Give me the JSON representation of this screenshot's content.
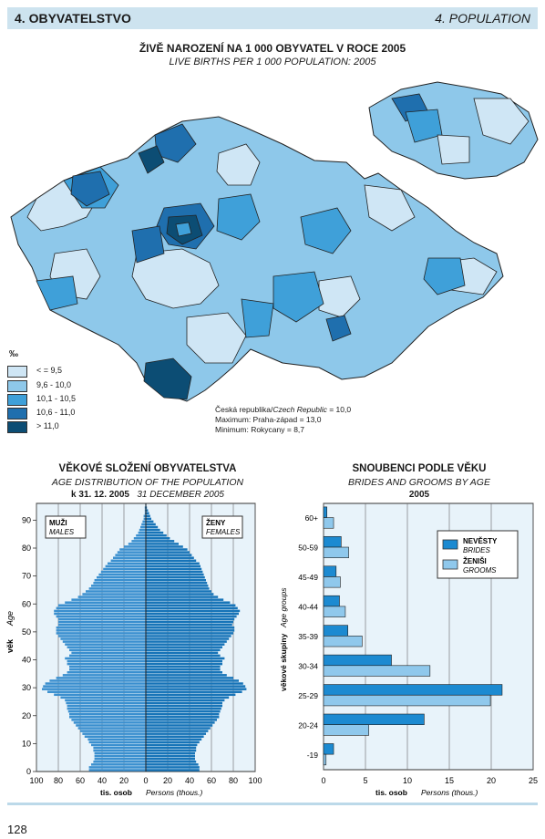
{
  "header": {
    "left": "4. OBYVATELSTVO",
    "right": "4. POPULATION"
  },
  "map": {
    "title": "ŽIVĚ NAROZENÍ NA 1 000 OBYVATEL V ROCE 2005",
    "subtitle": "LIVE BIRTHS PER  1 000 POPULATION: 2005",
    "unit": "‰",
    "legend": [
      {
        "label": "< = 9,5",
        "color": "#cfe6f5"
      },
      {
        "label": "9,6 - 10,0",
        "color": "#8ec8ea"
      },
      {
        "label": "10,1 - 10,5",
        "color": "#3fa0d9"
      },
      {
        "label": "10,6 - 11,0",
        "color": "#1f6fae"
      },
      {
        "label": "> 11,0",
        "color": "#0c4d74"
      }
    ],
    "notes": [
      "Česká republika/",
      "Czech Republic",
      " = 10,0",
      "Maximum: Praha-západ = 13,0",
      "Minimum: Rokycany = 8,7"
    ]
  },
  "pyramid": {
    "title": "VĚKOVÉ SLOŽENÍ OBYVATELSTVA",
    "subtitle": "AGE DISTRIBUTION OF THE POPULATION",
    "date_cz": "k 31. 12. 2005",
    "date_en": "31 DECEMBER 2005",
    "males_cz": "MUŽI",
    "males_en": "MALES",
    "females_cz": "ŽENY",
    "females_en": "FEMALES",
    "ylabel_cz": "věk",
    "ylabel_en": "Age",
    "xlabel_cz": "tis. osob",
    "xlabel_en": "Persons (thous.)"
  },
  "brides": {
    "title": "SNOUBENCI PODLE VĚKU",
    "subtitle": "BRIDES AND GROOMS BY AGE",
    "year": "2005",
    "ylabel_cz": "věkové skupiny",
    "ylabel_en": "Age groups",
    "xlabel_cz": "tis. osob",
    "xlabel_en": "Persons (thous.)",
    "legend": [
      {
        "cz": "NEVĚSTY",
        "en": "BRIDES",
        "color": "#1c8ad1"
      },
      {
        "cz": "ŽENIŠI",
        "en": "GROOMS",
        "color": "#8fc8ec"
      }
    ]
  },
  "chart_data": [
    {
      "type": "bar",
      "orientation": "horizontal",
      "title": "VĚKOVÉ SLOŽENÍ OBYVATELSTVA",
      "x": [
        0,
        1,
        2,
        3,
        4,
        5,
        6,
        7,
        8,
        9,
        10,
        11,
        12,
        13,
        14,
        15,
        16,
        17,
        18,
        19,
        20,
        21,
        22,
        23,
        24,
        25,
        26,
        27,
        28,
        29,
        30,
        31,
        32,
        33,
        34,
        35,
        36,
        37,
        38,
        39,
        40,
        41,
        42,
        43,
        44,
        45,
        46,
        47,
        48,
        49,
        50,
        51,
        52,
        53,
        54,
        55,
        56,
        57,
        58,
        59,
        60,
        61,
        62,
        63,
        64,
        65,
        66,
        67,
        68,
        69,
        70,
        71,
        72,
        73,
        74,
        75,
        76,
        77,
        78,
        79,
        80,
        81,
        82,
        83,
        84,
        85,
        86,
        87,
        88,
        89,
        90,
        91,
        92,
        93,
        94,
        95
      ],
      "series": [
        {
          "name": "MUŽI",
          "values": [
            52,
            52,
            50,
            48,
            47,
            47,
            47,
            48,
            48,
            50,
            52,
            53,
            56,
            58,
            60,
            62,
            64,
            66,
            68,
            70,
            70,
            71,
            72,
            72,
            73,
            74,
            78,
            84,
            90,
            95,
            94,
            92,
            88,
            82,
            76,
            72,
            70,
            70,
            72,
            72,
            74,
            70,
            68,
            70,
            72,
            74,
            76,
            78,
            80,
            82,
            82,
            82,
            80,
            80,
            80,
            82,
            84,
            84,
            82,
            80,
            74,
            68,
            62,
            58,
            55,
            52,
            50,
            48,
            47,
            45,
            43,
            41,
            39,
            37,
            35,
            32,
            30,
            28,
            26,
            24,
            20,
            16,
            13,
            11,
            9,
            7,
            6,
            5,
            4,
            3,
            2,
            2,
            1,
            1,
            1,
            0.5
          ]
        },
        {
          "name": "ŽENY",
          "values": [
            49,
            49,
            48,
            46,
            45,
            45,
            45,
            46,
            46,
            47,
            49,
            51,
            53,
            55,
            57,
            59,
            61,
            63,
            65,
            67,
            67,
            68,
            69,
            70,
            70,
            72,
            76,
            82,
            88,
            92,
            91,
            89,
            85,
            80,
            74,
            70,
            68,
            68,
            70,
            70,
            72,
            68,
            66,
            68,
            70,
            72,
            74,
            76,
            78,
            80,
            81,
            81,
            79,
            80,
            81,
            83,
            85,
            86,
            84,
            82,
            77,
            71,
            66,
            62,
            60,
            58,
            57,
            56,
            55,
            54,
            53,
            52,
            51,
            50,
            49,
            46,
            44,
            42,
            40,
            38,
            34,
            30,
            26,
            22,
            19,
            16,
            13,
            11,
            9,
            7,
            5,
            4,
            3,
            2,
            1,
            0.5
          ]
        }
      ],
      "xlabel": "tis. osob  Persons (thous.)",
      "ylabel": "věk  Age",
      "xlim": [
        -100,
        100
      ],
      "ylim": [
        0,
        96
      ]
    },
    {
      "type": "bar",
      "orientation": "horizontal",
      "title": "SNOUBENCI PODLE VĚKU",
      "categories": [
        "-19",
        "20-24",
        "25-29",
        "30-34",
        "35-39",
        "40-44",
        "45-49",
        "50-59",
        "60+"
      ],
      "series": [
        {
          "name": "NEVĚSTY",
          "values": [
            1.2,
            12.0,
            21.3,
            8.1,
            2.9,
            1.9,
            1.5,
            2.1,
            0.4
          ]
        },
        {
          "name": "ŽENIŠI",
          "values": [
            0.3,
            5.4,
            19.9,
            12.7,
            4.6,
            2.6,
            2.0,
            3.0,
            1.2
          ]
        }
      ],
      "xlabel": "tis. osob  Persons (thous.)",
      "ylabel": "věkové skupiny  Age groups",
      "xlim": [
        0,
        25
      ],
      "xticks": [
        0,
        5,
        10,
        15,
        20,
        25
      ]
    }
  ],
  "page_number": "128"
}
